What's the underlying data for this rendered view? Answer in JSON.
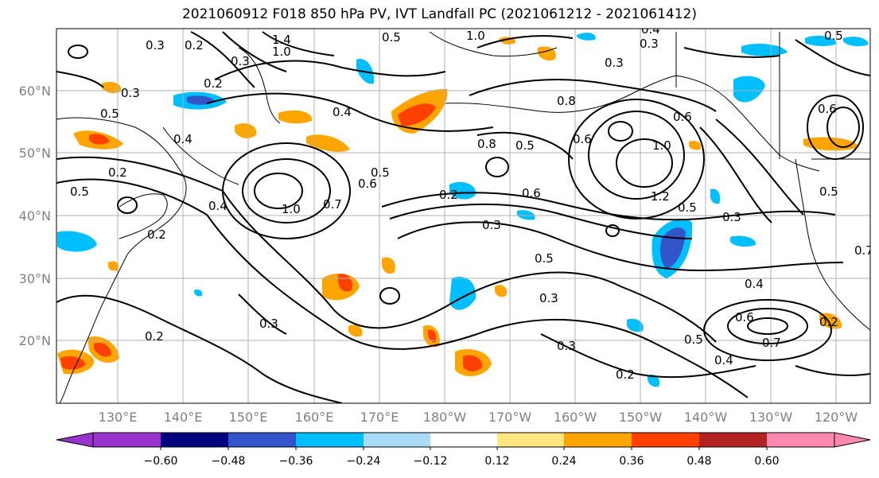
{
  "title": "2021060912 F018 850 hPa PV, IVT Landfall PC (2021061212 - 2021061412)",
  "map": {
    "lat_labels": [
      "60°N",
      "50°N",
      "40°N",
      "30°N",
      "20°N"
    ],
    "lon_labels": [
      "130°E",
      "140°E",
      "150°E",
      "160°E",
      "170°E",
      "180°W",
      "170°W",
      "160°W",
      "150°W",
      "140°W",
      "130°W",
      "120°W"
    ],
    "contour_labels": [
      "0.3",
      "0.2",
      "1.4",
      "1.0",
      "0.5",
      "1.0",
      "0.4",
      "0.3",
      "0.4",
      "0.2",
      "0.3",
      "0.5",
      "0.5",
      "0.6",
      "0.8",
      "0.6",
      "0.2",
      "0.5",
      "0.4",
      "1.0",
      "0.7",
      "0.6",
      "0.5",
      "0.2",
      "0.6",
      "0.3",
      "1.0",
      "0.5",
      "1.2",
      "0.5",
      "0.3",
      "0.2",
      "0.3",
      "0.3",
      "0.5",
      "0.3",
      "0.4",
      "0.3",
      "0.2",
      "0.2",
      "0.5",
      "0.6",
      "0.4",
      "0.7",
      "0.2",
      "0.4",
      "0.6",
      "0.3",
      "0.8",
      "0.5",
      "0.7"
    ]
  },
  "colorbar": {
    "ticks": [
      "−0.60",
      "−0.48",
      "−0.36",
      "−0.24",
      "−0.12",
      "0.12",
      "0.24",
      "0.36",
      "0.48",
      "0.60"
    ],
    "colors": [
      "#9933cc",
      "#000080",
      "#3355cc",
      "#00bfff",
      "#aadcf8",
      "#ffffff",
      "#ffe680",
      "#ffa500",
      "#ff4000",
      "#b22222",
      "#ff88b0"
    ]
  },
  "palette": {
    "blue": "#00bfff",
    "light_blue": "#aadcf8",
    "dark_blue": "#3355cc",
    "yellow": "#ffe680",
    "orange": "#ffa500",
    "red_orange": "#ff4000"
  }
}
